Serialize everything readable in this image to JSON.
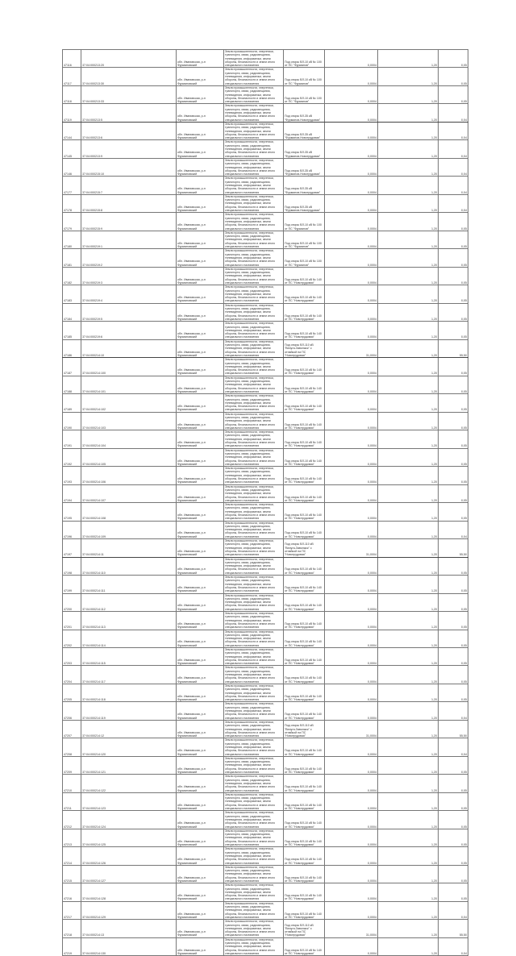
{
  "address": "обл. Ивановская, р-н Фурмановский",
  "category": "Земли промышленности, энергетики, транспорта, связи, радиовещания, телевидения, информатики, земли обороны, безопасности и земли иного специального назначения",
  "rows": [
    {
      "id": "47116",
      "code": "37:04:000213:20",
      "purpose": "Под опоры ВЛ-10 кВ № 100 от ПС \"Фурманов\"",
      "area": "0,0004",
      "v1": "1,20",
      "v2": "0,05"
    },
    {
      "id": "47117",
      "code": "37:04:000213:30",
      "purpose": "Под опоры ВЛ-10 кВ № 100 от ПС \"Фурманов\"",
      "area": "0,0004",
      "v1": "1,20",
      "v2": "0,05"
    },
    {
      "id": "47118",
      "code": "37:04:000213:33",
      "purpose": "Под опоры ВЛ-10 кВ № 100 от ПС \"Фурманов\"",
      "area": "0,0004",
      "v1": "1,20",
      "v2": "0,05"
    },
    {
      "id": "47119",
      "code": "37:04:000213:5",
      "purpose": "Под опоры ВЛ-35 кВ \"Фурманов-Новотрудовая\"",
      "area": "0,0004",
      "v1": "1,20",
      "v2": "0,04"
    },
    {
      "id": "47144",
      "code": "37:04:000213:6",
      "purpose": "Под опоры ВЛ-35 кВ \"Фурманов-Новотрудовая\"",
      "area": "0,0004",
      "v1": "1,20",
      "v2": "0,04"
    },
    {
      "id": "47145",
      "code": "37:04:000213:9",
      "purpose": "Под опоры ВЛ-35 кВ \"Фурманов-Новотрудовая\"",
      "area": "0,0004",
      "v1": "1,20",
      "v2": "0,04"
    },
    {
      "id": "47146",
      "code": "37:04:000215:10",
      "purpose": "Под опоры ВЛ-35 кВ \"Фурманов-Новотрудовая\"",
      "area": "0,0004",
      "v1": "1,20",
      "v2": "0,04"
    },
    {
      "id": "47177",
      "code": "37:04:000215:7",
      "purpose": "Под опоры ВЛ-35 кВ \"Фурманов-Новотрудовая\"",
      "area": "0,0004",
      "v1": "1,20",
      "v2": "0,04"
    },
    {
      "id": "47178",
      "code": "37:04:000215:8",
      "purpose": "Под опоры ВЛ-35 кВ \"Фурманов-Новотрудовая\"",
      "area": "0,0004",
      "v1": "1,20",
      "v2": "0,04"
    },
    {
      "id": "47179",
      "code": "37:04:000215:9",
      "purpose": "Под опоры ВЛ-10 кВ № 100 от ПС \"Фурманов\"",
      "area": "0,0004",
      "v1": "1,20",
      "v2": "0,05"
    },
    {
      "id": "47180",
      "code": "37:04:000219:1",
      "purpose": "Под опоры ВЛ-10 кВ № 100 от ПС \"Фурманов\"",
      "area": "0,0004",
      "v1": "1,20",
      "v2": "0,05"
    },
    {
      "id": "47181",
      "code": "37:04:000219:2",
      "purpose": "Под опоры ВЛ-10 кВ № 100 от ПС \"Фурманов\"",
      "area": "0,0004",
      "v1": "1,20",
      "v2": "0,05"
    },
    {
      "id": "47182",
      "code": "37:04:000219:3",
      "purpose": "Под опоры ВЛ-10 кВ № 140 от ПС \"Новотрудовая\"",
      "area": "0,0004",
      "v1": "1,20",
      "v2": "0,05"
    },
    {
      "id": "47183",
      "code": "37:04:000219:4",
      "purpose": "Под опоры ВЛ-10 кВ № 140 от ПС \"Новотрудовая\"",
      "area": "0,0004",
      "v1": "1,20",
      "v2": "0,05"
    },
    {
      "id": "47184",
      "code": "37:04:000219:5",
      "purpose": "Под опоры ВЛ-10 кВ № 140 от ПС \"Новотрудовая\"",
      "area": "0,0004",
      "v1": "1,20",
      "v2": "0,05"
    },
    {
      "id": "47185",
      "code": "37:04:000219:6",
      "purpose": "Под опоры ВЛ-10 кВ № 140 от ПС \"Новотрудовая\"",
      "area": "0,0004",
      "v1": "1,20",
      "v2": "0,05"
    },
    {
      "id": "47186",
      "code": "37:04:000214:10",
      "purpose": "Под опоры ВЛ-110 кВ \"Вичуга-Заволжск\" с отпайкой на ПС \"Новотрудовая\"",
      "area": "31,0004",
      "v1": "1,20",
      "v2": "55,50"
    },
    {
      "id": "47187",
      "code": "37:04:000214:100",
      "purpose": "Под опоры ВЛ-10 кВ № 140 от ПС \"Новотрудовая\"",
      "area": "0,0004",
      "v1": "1,20",
      "v2": "0,05"
    },
    {
      "id": "47188",
      "code": "37:04:000214:101",
      "purpose": "Под опоры ВЛ-10 кВ № 140 от ПС \"Новотрудовая\"",
      "area": "0,0004",
      "v1": "1,20",
      "v2": "0,05"
    },
    {
      "id": "47189",
      "code": "37:04:000214:102",
      "purpose": "Под опоры ВЛ-10 кВ № 140 от ПС \"Новотрудовая\"",
      "area": "0,0004",
      "v1": "1,20",
      "v2": "0,05"
    },
    {
      "id": "47190",
      "code": "37:04:000214:103",
      "purpose": "Под опоры ВЛ-10 кВ № 140 от ПС \"Новотрудовая\"",
      "area": "0,0004",
      "v1": "1,20",
      "v2": "0,05"
    },
    {
      "id": "47191",
      "code": "37:04:000214:104",
      "purpose": "Под опоры ВЛ-10 кВ № 140 от ПС \"Новотрудовая\"",
      "area": "0,0004",
      "v1": "1,20",
      "v2": "0,05"
    },
    {
      "id": "47192",
      "code": "37:04:000214:105",
      "purpose": "Под опоры ВЛ-10 кВ № 140 от ПС \"Новотрудовая\"",
      "area": "0,0004",
      "v1": "1,20",
      "v2": "0,05"
    },
    {
      "id": "47193",
      "code": "37:04:000214:106",
      "purpose": "Под опоры ВЛ-10 кВ № 140 от ПС \"Новотрудовая\"",
      "area": "0,0004",
      "v1": "1,20",
      "v2": "0,05"
    },
    {
      "id": "47194",
      "code": "37:04:000214:107",
      "purpose": "Под опоры ВЛ-10 кВ № 140 от ПС \"Новотрудовая\"",
      "area": "0,0004",
      "v1": "1,20",
      "v2": "0,05"
    },
    {
      "id": "47195",
      "code": "37:04:000214:108",
      "purpose": "Под опоры ВЛ-10 кВ № 140 от ПС \"Новотрудовая\"",
      "area": "0,0004",
      "v1": "1,20",
      "v2": "0,05"
    },
    {
      "id": "47196",
      "code": "37:04:000214:109",
      "purpose": "Под опоры ВЛ-10 кВ № 140 от ПС \"Новотрудовая\"",
      "area": "0,0004",
      "v1": "1,20",
      "v2": "0,04"
    },
    {
      "id": "47197",
      "code": "37:04:000214:11",
      "purpose": "Под опоры ВЛ-110 кВ \"Вичуга-Заволжск\" с отпайкой на ПС \"Новотрудовая\"",
      "area": "31,0004",
      "v1": "1,20",
      "v2": "55,50"
    },
    {
      "id": "47198",
      "code": "37:04:000214:110",
      "purpose": "Под опоры ВЛ-10 кВ № 140 от ПС \"Новотрудовая\"",
      "area": "0,0004",
      "v1": "1,20",
      "v2": "0,05"
    },
    {
      "id": "47199",
      "code": "37:04:000214:111",
      "purpose": "Под опоры ВЛ-10 кВ № 140 от ПС \"Новотрудовая\"",
      "area": "0,0004",
      "v1": "1,20",
      "v2": "0,05"
    },
    {
      "id": "47200",
      "code": "37:04:000214:112",
      "purpose": "Под опоры ВЛ-10 кВ № 140 от ПС \"Новотрудовая\"",
      "area": "0,0004",
      "v1": "1,20",
      "v2": "0,05"
    },
    {
      "id": "47201",
      "code": "37:04:000214:113",
      "purpose": "Под опоры ВЛ-10 кВ № 140 от ПС \"Новотрудовая\"",
      "area": "0,0004",
      "v1": "1,20",
      "v2": "0,05"
    },
    {
      "id": "47202",
      "code": "37:04:000214:114",
      "purpose": "Под опоры ВЛ-10 кВ № 140 от ПС \"Новотрудовая\"",
      "area": "0,0004",
      "v1": "1,20",
      "v2": "0,05"
    },
    {
      "id": "47203",
      "code": "37:04:000214:115",
      "purpose": "Под опоры ВЛ-10 кВ № 140 от ПС \"Новотрудовая\"",
      "area": "0,0004",
      "v1": "1,20",
      "v2": "0,05"
    },
    {
      "id": "47204",
      "code": "37:04:000214:117",
      "purpose": "Под опоры ВЛ-10 кВ № 140 от ПС \"Новотрудовая\"",
      "area": "0,0004",
      "v1": "1,20",
      "v2": "0,05"
    },
    {
      "id": "47205",
      "code": "37:04:000214:118",
      "purpose": "Под опоры ВЛ-10 кВ № 140 от ПС \"Новотрудовая\"",
      "area": "0,0004",
      "v1": "1,20",
      "v2": "0,05"
    },
    {
      "id": "47206",
      "code": "37:04:000214:119",
      "purpose": "Под опоры ВЛ-10 кВ № 140 от ПС \"Новотрудовая\"",
      "area": "0,0004",
      "v1": "1,20",
      "v2": "0,04"
    },
    {
      "id": "47207",
      "code": "37:04:000214:12",
      "purpose": "Под опоры ВЛ-110 кВ \"Вичуга-Заволжск\" с отпайкой на ПС \"Новотрудовая\"",
      "area": "31,0004",
      "v1": "1,20",
      "v2": "55,50"
    },
    {
      "id": "47208",
      "code": "37:04:000214:120",
      "purpose": "Под опоры ВЛ-10 кВ № 140 от ПС \"Новотрудовая\"",
      "area": "0,0004",
      "v1": "1,20",
      "v2": "0,04"
    },
    {
      "id": "47209",
      "code": "37:04:000214:121",
      "purpose": "Под опоры ВЛ-10 кВ № 140 от ПС \"Новотрудовая\"",
      "area": "0,0004",
      "v1": "1,20",
      "v2": "0,05"
    },
    {
      "id": "47210",
      "code": "37:04:000214:122",
      "purpose": "Под опоры ВЛ-10 кВ № 140 от ПС \"Новотрудовая\"",
      "area": "0,0004",
      "v1": "1,20",
      "v2": "0,05"
    },
    {
      "id": "47211",
      "code": "37:04:000214:123",
      "purpose": "Под опоры ВЛ-10 кВ № 140 от ПС \"Новотрудовая\"",
      "area": "0,0004",
      "v1": "1,20",
      "v2": "0,05"
    },
    {
      "id": "47212",
      "code": "37:04:000214:124",
      "purpose": "Под опоры ВЛ-10 кВ № 140 от ПС \"Новотрудовая\"",
      "area": "0,0004",
      "v1": "1,20",
      "v2": "0,05"
    },
    {
      "id": "47213",
      "code": "37:04:000214:125",
      "purpose": "Под опоры ВЛ-10 кВ № 140 от ПС \"Новотрудовая\"",
      "area": "0,0004",
      "v1": "1,20",
      "v2": "0,05"
    },
    {
      "id": "47214",
      "code": "37:04:000214:126",
      "purpose": "Под опоры ВЛ-10 кВ № 140 от ПС \"Новотрудовая\"",
      "area": "0,0004",
      "v1": "1,20",
      "v2": "0,05"
    },
    {
      "id": "47215",
      "code": "37:04:000214:127",
      "purpose": "Под опоры ВЛ-10 кВ № 140 от ПС \"Новотрудовая\"",
      "area": "0,0004",
      "v1": "1,20",
      "v2": "0,05"
    },
    {
      "id": "47216",
      "code": "37:04:000214:128",
      "purpose": "Под опоры ВЛ-10 кВ № 140 от ПС \"Новотрудовая\"",
      "area": "0,0004",
      "v1": "1,20",
      "v2": "0,05"
    },
    {
      "id": "47217",
      "code": "37:04:000214:129",
      "purpose": "Под опоры ВЛ-10 кВ № 140 от ПС \"Новотрудовая\"",
      "area": "0,0004",
      "v1": "1,20",
      "v2": "0,04"
    },
    {
      "id": "47218",
      "code": "37:04:000214:13",
      "purpose": "Под опоры ВЛ-110 кВ \"Вичуга-Заволжск\" с отпайкой на ПС \"Новотрудовая\"",
      "area": "31,0004",
      "v1": "1,20",
      "v2": "55,50"
    },
    {
      "id": "47219",
      "code": "37:04:000214:130",
      "purpose": "Под опоры ВЛ-10 кВ № 140 от ПС \"Новотрудовая\"",
      "area": "0,0004",
      "v1": "1,20",
      "v2": "0,04"
    }
  ]
}
